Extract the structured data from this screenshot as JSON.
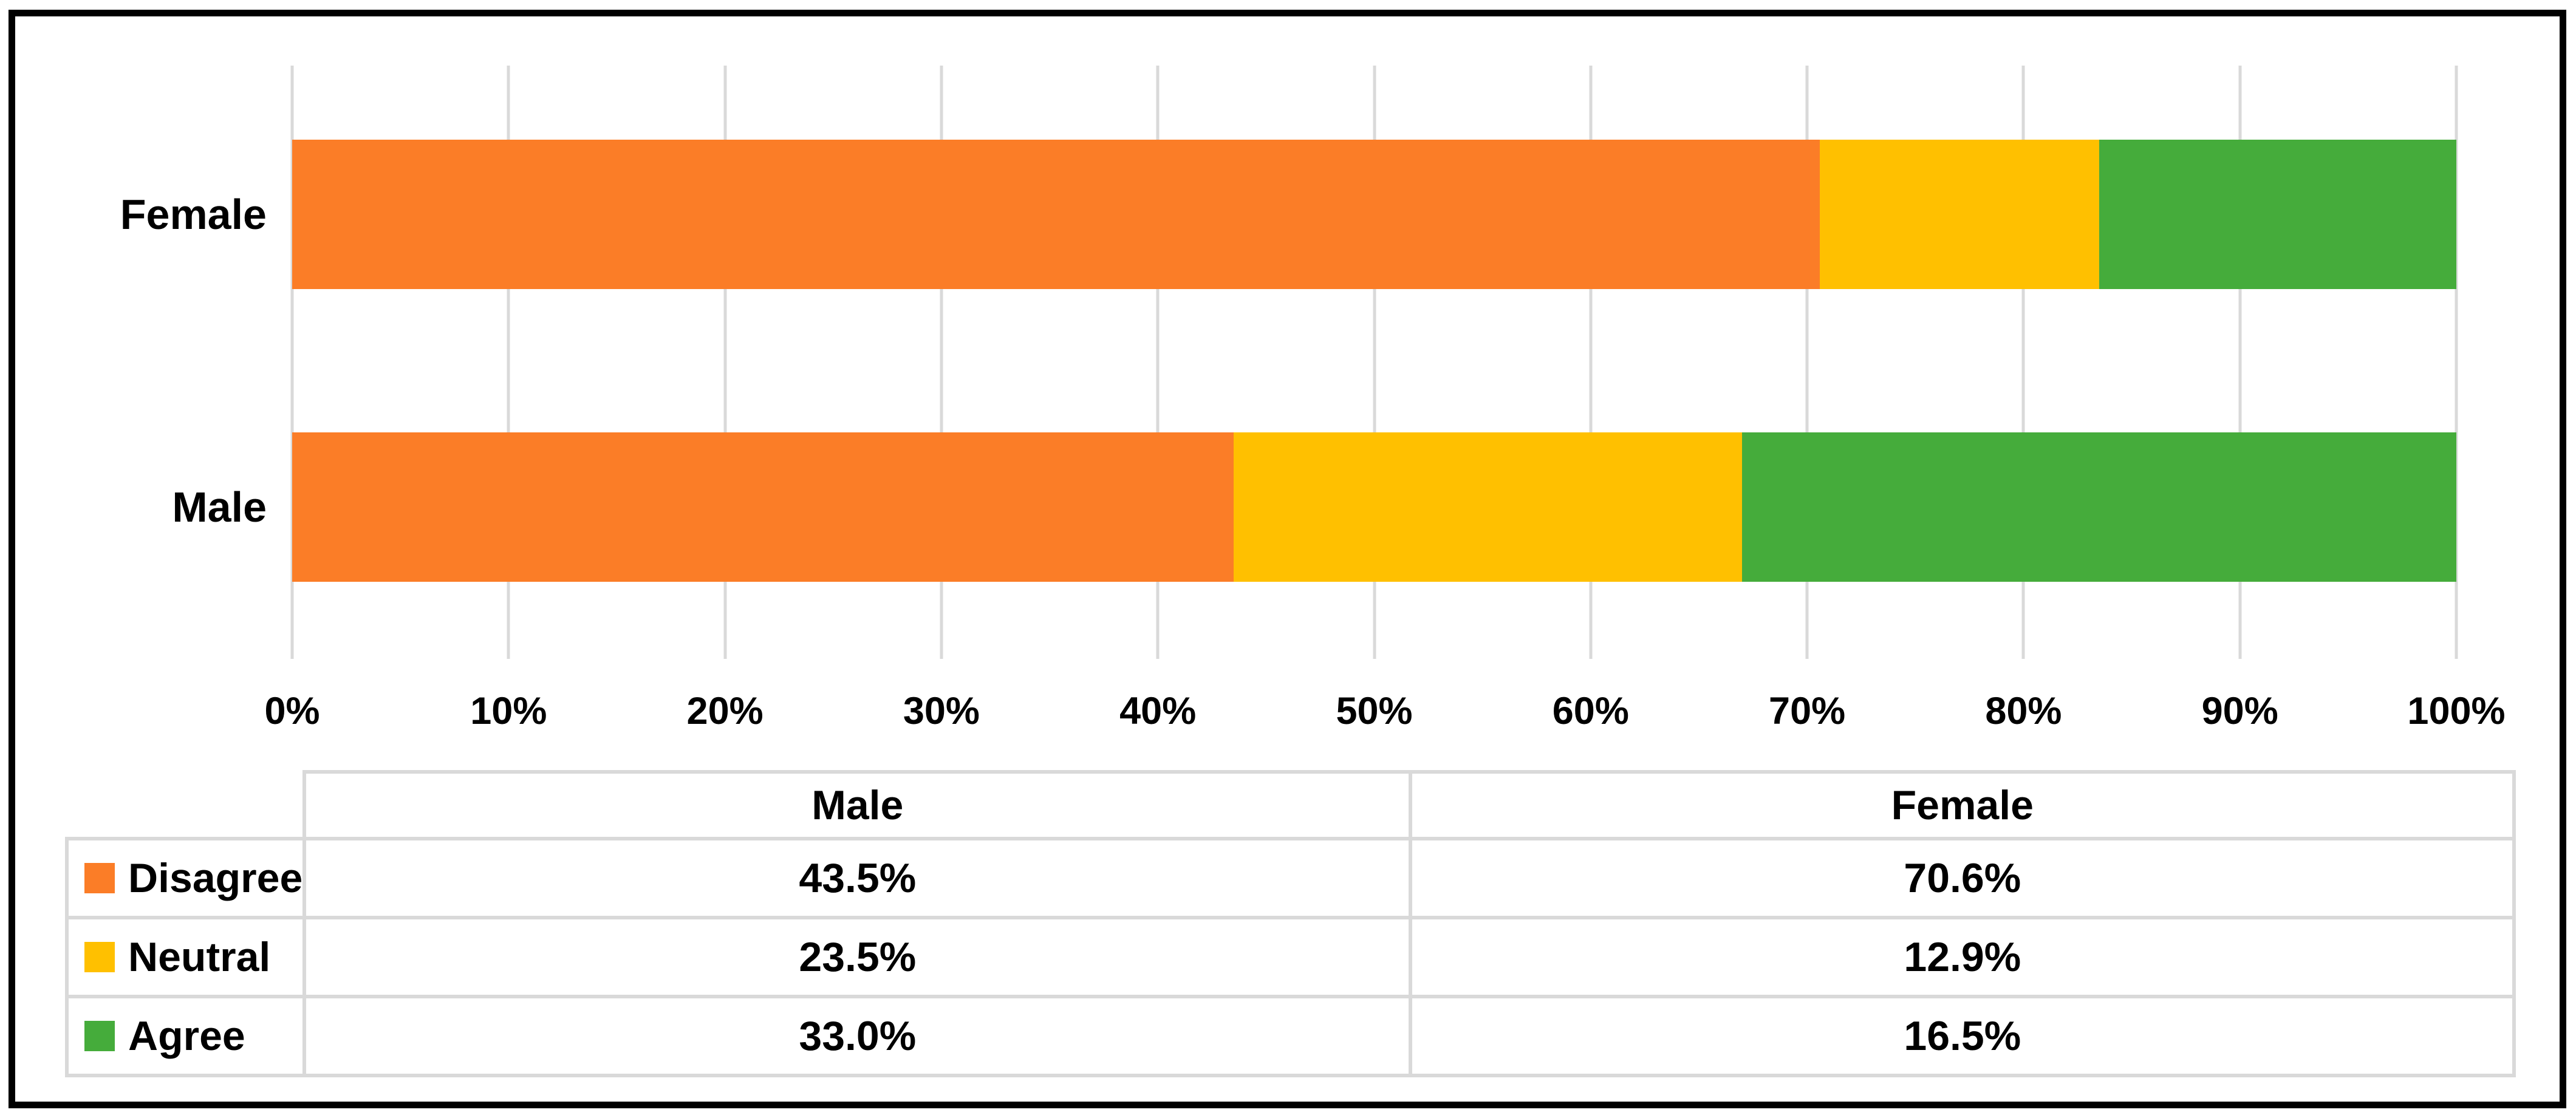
{
  "figure": {
    "background": "#ffffff",
    "frame_color": "#000000"
  },
  "chart_data": {
    "type": "bar",
    "orientation": "horizontal",
    "stacked": true,
    "unit": "%",
    "categories": [
      "Female",
      "Male"
    ],
    "series": [
      {
        "name": "Disagree",
        "color": "#FB7D27",
        "values": [
          70.6,
          43.5
        ]
      },
      {
        "name": "Neutral",
        "color": "#FFC000",
        "values": [
          12.9,
          23.5
        ]
      },
      {
        "name": "Agree",
        "color": "#45AC3B",
        "values": [
          16.5,
          33.0
        ]
      }
    ],
    "xlim": [
      0,
      100
    ],
    "x_tick_labels": [
      "0%",
      "10%",
      "20%",
      "30%",
      "40%",
      "50%",
      "60%",
      "70%",
      "80%",
      "90%",
      "100%"
    ],
    "grid": true,
    "gridline_color": "#D9D9D9",
    "legend_position": "table-left-column",
    "title": ""
  },
  "data_table": {
    "border_color": "#D9D9D9",
    "column_headers": [
      "Male",
      "Female"
    ],
    "rows": [
      {
        "label": "Disagree",
        "swatch_color": "#FB7D27",
        "values": [
          "43.5%",
          "70.6%"
        ]
      },
      {
        "label": "Neutral",
        "swatch_color": "#FFC000",
        "values": [
          "23.5%",
          "12.9%"
        ]
      },
      {
        "label": "Agree",
        "swatch_color": "#45AC3B",
        "values": [
          "33.0%",
          "16.5%"
        ]
      }
    ]
  }
}
